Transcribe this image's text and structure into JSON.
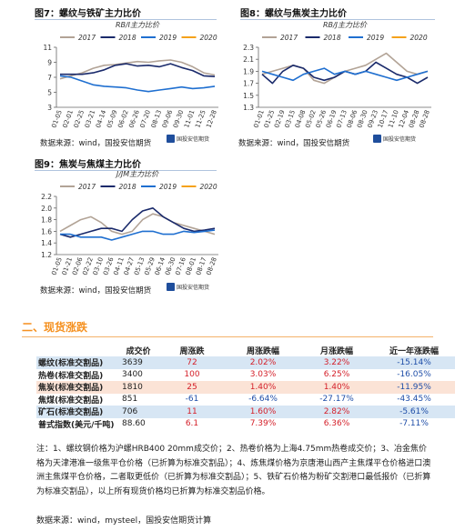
{
  "figures": [
    {
      "title": "图7：螺纹与铁矿主力比价",
      "subtitle": "RB/I主力比价",
      "source": "数据来源：wind，国投安信期货",
      "logo": "国投安信期货",
      "chart_data": {
        "type": "line",
        "subtitle": "RB/I主力比价",
        "ylim": [
          3,
          11
        ],
        "yticks": [
          "3",
          "5",
          "7",
          "9",
          "11"
        ],
        "xticks": [
          "01-05",
          "02-01",
          "02-25",
          "03-21",
          "04-14",
          "05-09",
          "06-02",
          "06-26",
          "07-20",
          "08-13",
          "09-06",
          "09-30",
          "11-01",
          "11-25",
          "12-28"
        ],
        "series": [
          {
            "name": "2017",
            "color": "#b2a396",
            "values": [
              6.8,
              7.2,
              7.6,
              8.2,
              8.6,
              8.7,
              8.9,
              9.1,
              9.0,
              9.2,
              9.3,
              9.0,
              8.4,
              7.6,
              7.3
            ]
          },
          {
            "name": "2018",
            "color": "#1a2a6b",
            "values": [
              7.4,
              7.4,
              7.4,
              7.6,
              8.0,
              8.6,
              8.8,
              8.5,
              8.6,
              8.4,
              8.8,
              8.3,
              7.9,
              7.2,
              7.1
            ]
          },
          {
            "name": "2019",
            "color": "#1f6fd0",
            "values": [
              7.2,
              7.0,
              6.5,
              6.0,
              5.8,
              5.7,
              5.6,
              5.3,
              5.1,
              5.3,
              5.5,
              5.7,
              5.5,
              5.6,
              5.8
            ]
          },
          {
            "name": "2020",
            "color": "#f5a21b",
            "values": [
              null,
              null,
              null,
              null,
              null,
              null,
              null,
              null,
              null,
              null,
              null,
              null,
              null,
              null,
              null
            ]
          }
        ]
      }
    },
    {
      "title": "图8：螺纹与焦炭主力比价",
      "subtitle": "RB/J主力比价",
      "source": "数据来源：wind，国投安信期货",
      "logo": "国投安信期货",
      "chart_data": {
        "type": "line",
        "subtitle": "RB/J主力比价",
        "ylim": [
          1.3,
          2.3
        ],
        "yticks": [
          "1.3",
          "1.5",
          "1.7",
          "1.9",
          "2.1",
          "2.3"
        ],
        "xticks": [
          "01-01",
          "01-25",
          "02-19",
          "03-15",
          "04-08",
          "05-02",
          "05-26",
          "06-19",
          "07-13",
          "08-06",
          "08-30",
          "09-23",
          "10-17",
          "11-10",
          "12-04",
          "08-28",
          "08-28"
        ],
        "series": [
          {
            "name": "2017",
            "color": "#b2a396",
            "values": [
              1.85,
              1.9,
              1.95,
              2.0,
              1.95,
              1.75,
              1.7,
              1.8,
              1.9,
              1.95,
              2.0,
              2.1,
              2.2,
              2.05,
              1.9,
              1.85,
              1.9
            ]
          },
          {
            "name": "2018",
            "color": "#1a2a6b",
            "values": [
              1.85,
              1.7,
              1.9,
              2.0,
              1.95,
              1.8,
              1.75,
              1.8,
              1.9,
              1.85,
              1.9,
              2.05,
              1.95,
              1.85,
              1.8,
              1.7,
              1.8
            ]
          },
          {
            "name": "2019",
            "color": "#1f6fd0",
            "values": [
              1.9,
              1.85,
              1.8,
              1.75,
              1.85,
              1.9,
              1.95,
              1.85,
              1.9,
              1.85,
              1.9,
              1.85,
              1.8,
              1.75,
              1.8,
              1.85,
              1.9
            ]
          },
          {
            "name": "2020",
            "color": "#f5a21b",
            "values": [
              null,
              null,
              null,
              null,
              null,
              null,
              null,
              null,
              null,
              null,
              null,
              null,
              null,
              null,
              null,
              null,
              null
            ]
          }
        ]
      }
    },
    {
      "title": "图9：焦炭与焦煤主力比价",
      "subtitle": "J/JM主力比价",
      "source": "数据来源：wind，国投安信期货",
      "logo": "国投安信期货",
      "chart_data": {
        "type": "line",
        "subtitle": "J/JM主力比价",
        "ylim": [
          1.2,
          2.2
        ],
        "yticks": [
          "1.2",
          "1.4",
          "1.6",
          "1.8",
          "2.0",
          "2.2"
        ],
        "xticks": [
          "01-05",
          "01-21",
          "02-06",
          "02-22",
          "03-10",
          "03-26",
          "04-11",
          "04-27",
          "05-13",
          "05-29",
          "06-14",
          "06-30",
          "07-16",
          "08-01",
          "08-17",
          "08-28"
        ],
        "series": [
          {
            "name": "2017",
            "color": "#b2a396",
            "values": [
              1.6,
              1.7,
              1.8,
              1.85,
              1.75,
              1.6,
              1.55,
              1.6,
              1.8,
              1.9,
              1.85,
              1.75,
              1.7,
              1.65,
              1.6,
              1.55
            ]
          },
          {
            "name": "2018",
            "color": "#1a2a6b",
            "values": [
              1.55,
              1.5,
              1.55,
              1.6,
              1.65,
              1.65,
              1.6,
              1.8,
              1.95,
              2.0,
              1.85,
              1.75,
              1.65,
              1.6,
              1.62,
              1.65
            ]
          },
          {
            "name": "2019",
            "color": "#1f6fd0",
            "values": [
              1.55,
              1.55,
              1.5,
              1.5,
              1.5,
              1.45,
              1.5,
              1.55,
              1.6,
              1.6,
              1.55,
              1.55,
              1.6,
              1.58,
              1.6,
              1.62
            ]
          },
          {
            "name": "2020",
            "color": "#f5a21b",
            "values": [
              null,
              null,
              null,
              null,
              null,
              null,
              null,
              null,
              null,
              null,
              null,
              null,
              null,
              null,
              null,
              null
            ]
          }
        ]
      }
    }
  ],
  "section_title": "二、现货涨跌",
  "table": {
    "headers": [
      "",
      "成交价",
      "周涨跌",
      "周涨跌幅",
      "月涨跌幅",
      "近一年涨跌幅"
    ],
    "rows": [
      {
        "name": "螺纹(标准交割品)",
        "price": "3639",
        "weekly": "72",
        "weekly_pct": "2.02%",
        "monthly_pct": "3.22%",
        "yearly_pct": "-15.14%",
        "w_dir": "up",
        "wp_dir": "up",
        "m_dir": "up",
        "y_dir": "down",
        "shade": "blue"
      },
      {
        "name": "热卷(标准交割品)",
        "price": "3400",
        "weekly": "100",
        "weekly_pct": "3.03%",
        "monthly_pct": "6.25%",
        "yearly_pct": "-16.05%",
        "w_dir": "up",
        "wp_dir": "up",
        "m_dir": "up",
        "y_dir": "down",
        "shade": ""
      },
      {
        "name": "焦炭(标准交割品)",
        "price": "1810",
        "weekly": "25",
        "weekly_pct": "1.40%",
        "monthly_pct": "1.40%",
        "yearly_pct": "-11.95%",
        "w_dir": "up",
        "wp_dir": "up",
        "m_dir": "up",
        "y_dir": "down",
        "shade": "pink"
      },
      {
        "name": "焦煤(标准交割品)",
        "price": "851",
        "weekly": "-61",
        "weekly_pct": "-6.64%",
        "monthly_pct": "-27.17%",
        "yearly_pct": "-43.45%",
        "w_dir": "down",
        "wp_dir": "down",
        "m_dir": "down",
        "y_dir": "down",
        "shade": ""
      },
      {
        "name": "矿石(标准交割品)",
        "price": "706",
        "weekly": "11",
        "weekly_pct": "1.60%",
        "monthly_pct": "2.82%",
        "yearly_pct": "-5.61%",
        "w_dir": "up",
        "wp_dir": "up",
        "m_dir": "up",
        "y_dir": "down",
        "shade": "blue"
      },
      {
        "name": "普式指数(美元/千吨)",
        "price": "88.60",
        "weekly": "6.1",
        "weekly_pct": "7.39%",
        "monthly_pct": "6.36%",
        "yearly_pct": "-7.11%",
        "w_dir": "up",
        "wp_dir": "up",
        "m_dir": "up",
        "y_dir": "down",
        "shade": ""
      }
    ]
  },
  "note": "注：1、螺纹钢价格为沪螺HRB400 20mm成交价；2、热卷价格为上海4.75mm热卷成交价；3、冶金焦价格为天津港准一级焦平仓价格（已折算为标准交割品）；4、炼焦煤价格为京唐港山西产主焦煤平仓价格进口澳洲主焦煤平仓价格，二者取更低价（已折算为标准交割品）；5、铁矿石价格为粉矿交割港口最低报价（已折算为标准交割品），以上所有现货价格均已折算为标准交割品价格。",
  "footer_source": "数据来源：wind，mysteel，国投安信期货计算"
}
